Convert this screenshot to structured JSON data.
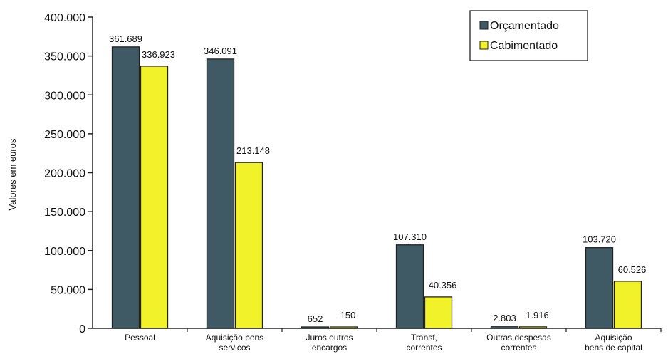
{
  "chart_data": {
    "type": "bar",
    "categories": [
      [
        "Pessoal"
      ],
      [
        "Aquisição bens",
        "servicos"
      ],
      [
        "Juros outros",
        "encargos"
      ],
      [
        "Transf,",
        "correntes"
      ],
      [
        "Outras despesas",
        "correntes"
      ],
      [
        "Aquisição",
        "bens de capital"
      ]
    ],
    "series": [
      {
        "name": "Orçamentado",
        "color": "#3f5a64",
        "values": [
          361689,
          346091,
          652,
          107310,
          2803,
          103720
        ],
        "labels": [
          "361.689",
          "346.091",
          "652",
          "107.310",
          "2.803",
          "103.720"
        ]
      },
      {
        "name": "Cabimentado",
        "color": "#f2f22a",
        "values": [
          336923,
          213148,
          150,
          40356,
          1916,
          60526
        ],
        "labels": [
          "336.923",
          "213.148",
          "150",
          "40.356",
          "1.916",
          "60.526"
        ]
      }
    ],
    "ylabel": "Valores em euros",
    "ylim": [
      0,
      400000
    ],
    "yticks": [
      {
        "value": 0,
        "label": "0"
      },
      {
        "value": 50000,
        "label": "50.000"
      },
      {
        "value": 100000,
        "label": "100.000"
      },
      {
        "value": 150000,
        "label": "150.000"
      },
      {
        "value": 200000,
        "label": "200.000"
      },
      {
        "value": 250000,
        "label": "250.000"
      },
      {
        "value": 300000,
        "label": "300.000"
      },
      {
        "value": 350000,
        "label": "350.000"
      },
      {
        "value": 400000,
        "label": "400.000"
      }
    ],
    "legend_position": "top-right",
    "grid": false
  }
}
